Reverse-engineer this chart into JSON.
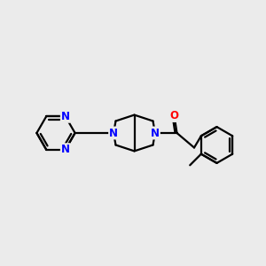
{
  "background_color": "#ebebeb",
  "bond_color": "#000000",
  "nitrogen_color": "#0000ff",
  "oxygen_color": "#ff0000",
  "line_width": 1.6,
  "font_size": 8.5,
  "figsize": [
    3.0,
    3.0
  ],
  "dpi": 100,
  "xlim": [
    0.0,
    10.0
  ],
  "ylim": [
    2.5,
    7.5
  ]
}
